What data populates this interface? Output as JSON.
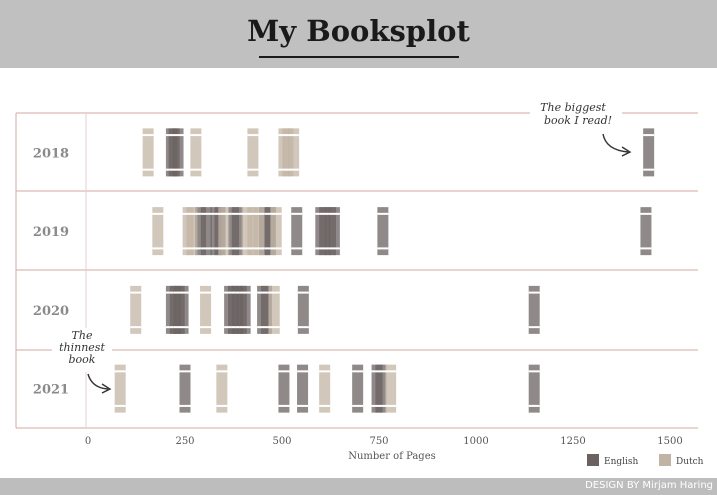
{
  "title": "My Booksplot",
  "footer": "DESIGN BY Mirjam Haring",
  "chart_data": {
    "type": "scatter",
    "title": "My Booksplot",
    "xlabel": "Number of Pages",
    "ylabel": "",
    "xlim": [
      -40,
      1570
    ],
    "xticks": [
      0,
      250,
      500,
      750,
      1000,
      1250,
      1500
    ],
    "tick_labels": [
      "0",
      "250",
      "500",
      "750",
      "1000",
      "1250",
      "1500"
    ],
    "categories": [
      "2018",
      "2019",
      "2020",
      "2021"
    ],
    "grid": false,
    "legend_position": "bottom-right",
    "colors": {
      "English": "#6b6161",
      "Dutch": "#c2b4a4"
    },
    "series": [
      {
        "name": "English",
        "points": [
          {
            "year": "2018",
            "pages": 215
          },
          {
            "year": "2018",
            "pages": 222
          },
          {
            "year": "2018",
            "pages": 232
          },
          {
            "year": "2018",
            "pages": 1445
          },
          {
            "year": "2019",
            "pages": 290
          },
          {
            "year": "2019",
            "pages": 305
          },
          {
            "year": "2019",
            "pages": 330
          },
          {
            "year": "2019",
            "pages": 340
          },
          {
            "year": "2019",
            "pages": 375
          },
          {
            "year": "2019",
            "pages": 385
          },
          {
            "year": "2019",
            "pages": 455
          },
          {
            "year": "2019",
            "pages": 470
          },
          {
            "year": "2019",
            "pages": 538
          },
          {
            "year": "2019",
            "pages": 600
          },
          {
            "year": "2019",
            "pages": 610
          },
          {
            "year": "2019",
            "pages": 625
          },
          {
            "year": "2019",
            "pages": 635
          },
          {
            "year": "2019",
            "pages": 760
          },
          {
            "year": "2019",
            "pages": 1438
          },
          {
            "year": "2020",
            "pages": 215
          },
          {
            "year": "2020",
            "pages": 225
          },
          {
            "year": "2020",
            "pages": 235
          },
          {
            "year": "2020",
            "pages": 245
          },
          {
            "year": "2020",
            "pages": 365
          },
          {
            "year": "2020",
            "pages": 375
          },
          {
            "year": "2020",
            "pages": 385
          },
          {
            "year": "2020",
            "pages": 395
          },
          {
            "year": "2020",
            "pages": 405
          },
          {
            "year": "2020",
            "pages": 450
          },
          {
            "year": "2020",
            "pages": 460
          },
          {
            "year": "2020",
            "pages": 555
          },
          {
            "year": "2020",
            "pages": 1150
          },
          {
            "year": "2021",
            "pages": 250
          },
          {
            "year": "2021",
            "pages": 505
          },
          {
            "year": "2021",
            "pages": 553
          },
          {
            "year": "2021",
            "pages": 695
          },
          {
            "year": "2021",
            "pages": 745
          },
          {
            "year": "2021",
            "pages": 755
          },
          {
            "year": "2021",
            "pages": 1150
          }
        ]
      },
      {
        "name": "Dutch",
        "points": [
          {
            "year": "2018",
            "pages": 155
          },
          {
            "year": "2018",
            "pages": 278
          },
          {
            "year": "2018",
            "pages": 425
          },
          {
            "year": "2018",
            "pages": 505
          },
          {
            "year": "2018",
            "pages": 515
          },
          {
            "year": "2018",
            "pages": 530
          },
          {
            "year": "2019",
            "pages": 180
          },
          {
            "year": "2019",
            "pages": 258
          },
          {
            "year": "2019",
            "pages": 268
          },
          {
            "year": "2019",
            "pages": 350
          },
          {
            "year": "2019",
            "pages": 410
          },
          {
            "year": "2019",
            "pages": 425
          },
          {
            "year": "2019",
            "pages": 440
          },
          {
            "year": "2019",
            "pages": 485
          },
          {
            "year": "2020",
            "pages": 123
          },
          {
            "year": "2020",
            "pages": 303
          },
          {
            "year": "2020",
            "pages": 480
          },
          {
            "year": "2021",
            "pages": 83
          },
          {
            "year": "2021",
            "pages": 345
          },
          {
            "year": "2021",
            "pages": 610
          },
          {
            "year": "2021",
            "pages": 780
          }
        ]
      }
    ],
    "annotations": [
      {
        "year": "2018",
        "pages": 1445,
        "lines": [
          "The biggest",
          "book I read!"
        ]
      },
      {
        "year": "2021",
        "pages": 83,
        "lines": [
          "The",
          "thinnest",
          "book"
        ]
      }
    ]
  }
}
